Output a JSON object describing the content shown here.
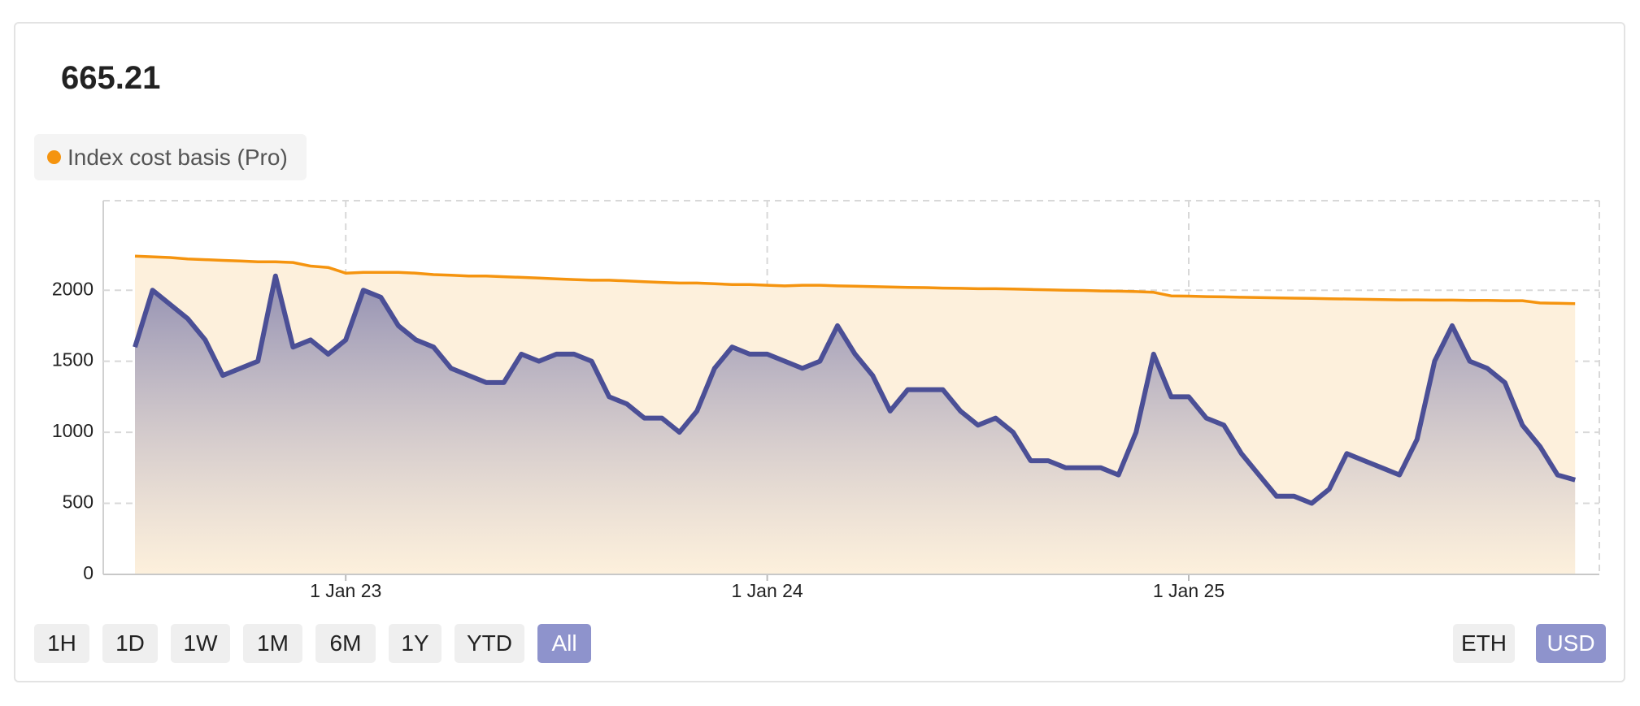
{
  "headline": "665.21",
  "chart_data": {
    "type": "line",
    "categories": [
      null,
      null,
      null,
      null,
      null,
      null,
      null,
      null,
      null,
      null,
      null,
      null,
      "1 Jan 23",
      null,
      null,
      null,
      null,
      null,
      null,
      null,
      null,
      null,
      null,
      null,
      null,
      null,
      null,
      null,
      null,
      null,
      null,
      null,
      null,
      null,
      null,
      null,
      "1 Jan 24",
      null,
      null,
      null,
      null,
      null,
      null,
      null,
      null,
      null,
      null,
      null,
      null,
      null,
      null,
      null,
      null,
      null,
      null,
      null,
      null,
      null,
      null,
      null,
      "1 Jan 25",
      null,
      null,
      null,
      null,
      null,
      null,
      null,
      null,
      null,
      null,
      null,
      null,
      null,
      null,
      null,
      null,
      null,
      null,
      null,
      null,
      null,
      null
    ],
    "series": [
      {
        "color": "#4b4f96",
        "values": [
          1600,
          2000,
          1900,
          1800,
          1650,
          1400,
          1450,
          1500,
          2100,
          1600,
          1650,
          1550,
          1650,
          2000,
          1950,
          1750,
          1650,
          1600,
          1450,
          1400,
          1350,
          1350,
          1550,
          1500,
          1550,
          1550,
          1500,
          1250,
          1200,
          1100,
          1100,
          1000,
          1150,
          1450,
          1600,
          1550,
          1550,
          1500,
          1450,
          1500,
          1750,
          1550,
          1400,
          1150,
          1300,
          1300,
          1300,
          1150,
          1050,
          1100,
          1000,
          800,
          800,
          750,
          750,
          750,
          700,
          1000,
          1550,
          1250,
          1250,
          1100,
          1050,
          850,
          700,
          550,
          550,
          500,
          600,
          850,
          800,
          750,
          700,
          950,
          1500,
          1750,
          1500,
          1450,
          1350,
          1050,
          900,
          700,
          665
        ]
      },
      {
        "name": "Index cost basis (Pro)",
        "color": "#f5940f",
        "values": [
          2240,
          2235,
          2230,
          2220,
          2215,
          2210,
          2205,
          2200,
          2200,
          2195,
          2170,
          2160,
          2120,
          2125,
          2125,
          2125,
          2120,
          2110,
          2105,
          2100,
          2100,
          2095,
          2090,
          2085,
          2080,
          2075,
          2070,
          2070,
          2065,
          2060,
          2055,
          2050,
          2050,
          2045,
          2040,
          2040,
          2035,
          2030,
          2035,
          2035,
          2030,
          2028,
          2025,
          2022,
          2020,
          2018,
          2015,
          2013,
          2010,
          2010,
          2008,
          2005,
          2003,
          2000,
          1998,
          1995,
          1993,
          1990,
          1985,
          1960,
          1958,
          1955,
          1953,
          1950,
          1948,
          1946,
          1944,
          1942,
          1940,
          1938,
          1936,
          1934,
          1932,
          1932,
          1930,
          1930,
          1928,
          1928,
          1926,
          1926,
          1910,
          1908,
          1905
        ]
      }
    ],
    "ylim": [
      0,
      2630
    ],
    "yticks": [
      0,
      500,
      1000,
      1500,
      2000
    ],
    "grid": true
  },
  "controls": {
    "ranges": [
      "1H",
      "1D",
      "1W",
      "1M",
      "6M",
      "1Y",
      "YTD",
      "All"
    ],
    "selected_range": 7,
    "currencies": [
      "ETH",
      "USD"
    ],
    "selected_currency": 1
  }
}
